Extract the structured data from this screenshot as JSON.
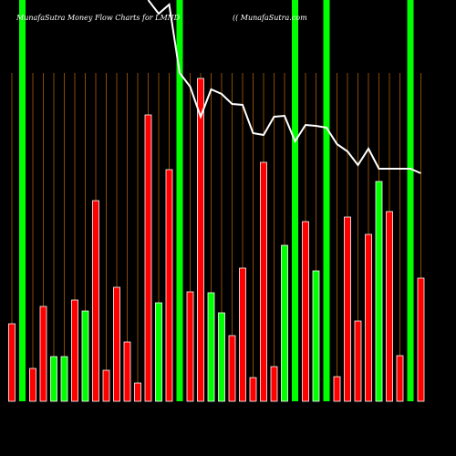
{
  "chart_data": {
    "type": "bar",
    "title": "MunafaSutra  Money Flow  Charts for LMND",
    "subtitle": "(( MunafaSutra.com",
    "ylim": [
      0,
      440
    ],
    "values": [
      85,
      440,
      36,
      104,
      49,
      49,
      111,
      99,
      220,
      34,
      125,
      65,
      20,
      314,
      108,
      254,
      440,
      120,
      354,
      119,
      97,
      72,
      146,
      26,
      262,
      38,
      171,
      440,
      197,
      143,
      440,
      27,
      202,
      88,
      183,
      241,
      208,
      50,
      440,
      135
    ],
    "colors": [
      "#ff0000",
      "#00ff00",
      "#ff0000",
      "#ff0000",
      "#00ff00",
      "#00ff00",
      "#ff0000",
      "#00ff00",
      "#ff0000",
      "#ff0000",
      "#ff0000",
      "#ff0000",
      "#ff0000",
      "#ff0000",
      "#00ff00",
      "#ff0000",
      "#00ff00",
      "#ff0000",
      "#ff0000",
      "#00ff00",
      "#00ff00",
      "#ff0000",
      "#ff0000",
      "#ff0000",
      "#ff0000",
      "#ff0000",
      "#00ff00",
      "#00ff00",
      "#ff0000",
      "#00ff00",
      "#00ff00",
      "#ff0000",
      "#ff0000",
      "#ff0000",
      "#ff0000",
      "#00ff00",
      "#ff0000",
      "#ff0000",
      "#00ff00",
      "#ff0000"
    ],
    "line_values": [
      null,
      null,
      null,
      null,
      null,
      null,
      null,
      null,
      null,
      null,
      null,
      null,
      null,
      440,
      425,
      435,
      360,
      345,
      312,
      342,
      337,
      326,
      325,
      294,
      292,
      312,
      313,
      285,
      303,
      302,
      300,
      282,
      274,
      259,
      277,
      255,
      255,
      255,
      255,
      250
    ],
    "line_color": "#ffffff"
  }
}
